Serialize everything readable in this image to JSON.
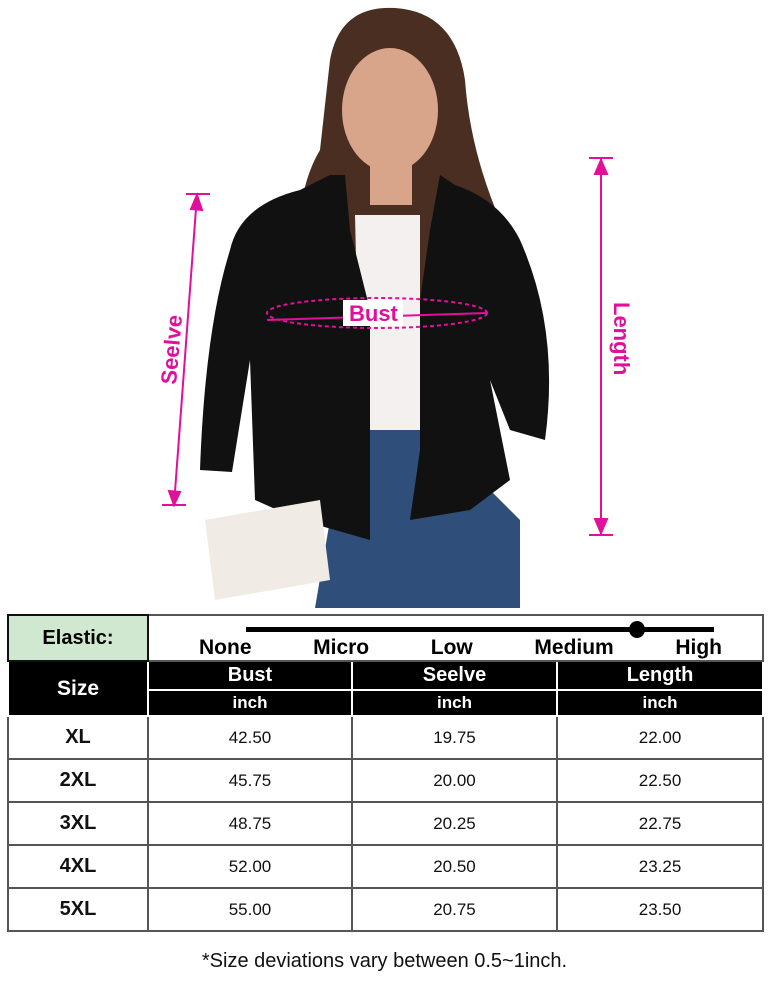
{
  "photo": {
    "labels": {
      "sleeve": "Seelve",
      "bust": "Bust",
      "length": "Length"
    },
    "accent_color": "#e0109a"
  },
  "elastic": {
    "label": "Elastic:",
    "levels": [
      "None",
      "Micro",
      "Low",
      "Medium",
      "High"
    ],
    "selected": "Medium"
  },
  "table": {
    "size_header": "Size",
    "columns": [
      {
        "name": "Bust",
        "unit": "inch"
      },
      {
        "name": "Seelve",
        "unit": "inch"
      },
      {
        "name": "Length",
        "unit": "inch"
      }
    ],
    "rows": [
      {
        "size": "XL",
        "bust": "42.50",
        "sleeve": "19.75",
        "length": "22.00"
      },
      {
        "size": "2XL",
        "bust": "45.75",
        "sleeve": "20.00",
        "length": "22.50"
      },
      {
        "size": "3XL",
        "bust": "48.75",
        "sleeve": "20.25",
        "length": "22.75"
      },
      {
        "size": "4XL",
        "bust": "52.00",
        "sleeve": "20.50",
        "length": "23.25"
      },
      {
        "size": "5XL",
        "bust": "55.00",
        "sleeve": "20.75",
        "length": "23.50"
      }
    ]
  },
  "note": "*Size deviations vary between 0.5~1inch."
}
